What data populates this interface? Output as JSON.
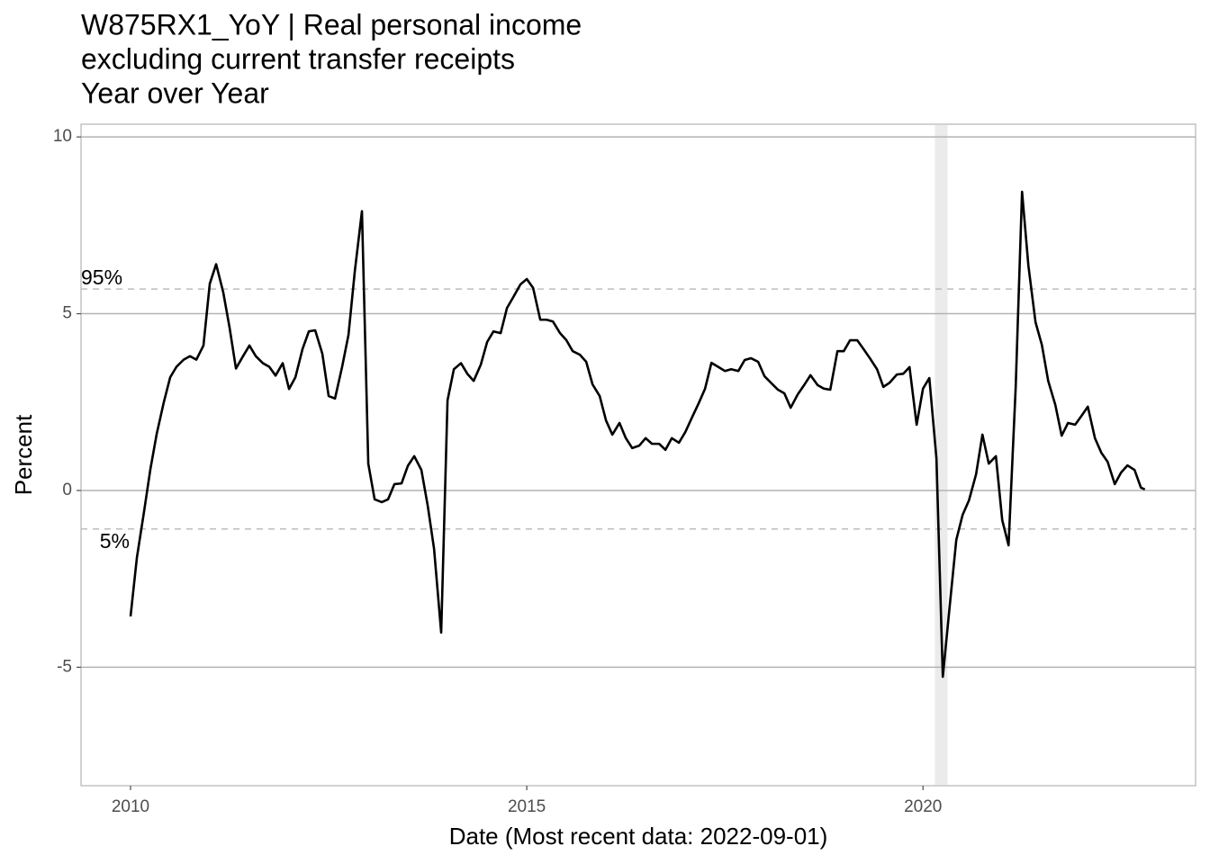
{
  "chart_data": {
    "type": "line",
    "title": [
      "W875RX1_YoY | Real personal income",
      "excluding current transfer receipts",
      "Year over Year"
    ],
    "x_label": "Date (Most recent data: 2022-09-01)",
    "y_label": "Percent",
    "color": "#000000",
    "grid": true,
    "xlim": [
      2009.375,
      2023.44
    ],
    "xticks": [
      2010,
      2015,
      2020
    ],
    "ylim": [
      -8.35,
      10.36
    ],
    "yticks": [
      -5,
      0,
      5,
      10
    ],
    "reference_lines": [
      {
        "label": "95%",
        "value": 5.7
      },
      {
        "label": "5%",
        "value": -1.09
      }
    ],
    "shaded_ranges": [
      [
        2020.15,
        2020.31
      ]
    ],
    "x": [
      2010.0,
      2010.08,
      2010.17,
      2010.25,
      2010.33,
      2010.42,
      2010.5,
      2010.58,
      2010.67,
      2010.75,
      2010.83,
      2010.92,
      2011.0,
      2011.08,
      2011.17,
      2011.25,
      2011.33,
      2011.42,
      2011.5,
      2011.58,
      2011.67,
      2011.75,
      2011.83,
      2011.92,
      2012.0,
      2012.08,
      2012.17,
      2012.25,
      2012.33,
      2012.42,
      2012.5,
      2012.58,
      2012.67,
      2012.75,
      2012.83,
      2012.92,
      2013.0,
      2013.08,
      2013.17,
      2013.25,
      2013.33,
      2013.42,
      2013.5,
      2013.58,
      2013.67,
      2013.75,
      2013.83,
      2013.92,
      2014.0,
      2014.08,
      2014.17,
      2014.25,
      2014.33,
      2014.42,
      2014.5,
      2014.58,
      2014.67,
      2014.75,
      2014.83,
      2014.92,
      2015.0,
      2015.08,
      2015.17,
      2015.25,
      2015.33,
      2015.42,
      2015.5,
      2015.58,
      2015.67,
      2015.75,
      2015.83,
      2015.92,
      2016.0,
      2016.08,
      2016.17,
      2016.25,
      2016.33,
      2016.42,
      2016.5,
      2016.58,
      2016.67,
      2016.75,
      2016.83,
      2016.92,
      2017.0,
      2017.08,
      2017.17,
      2017.25,
      2017.33,
      2017.42,
      2017.5,
      2017.58,
      2017.67,
      2017.75,
      2017.83,
      2017.92,
      2018.0,
      2018.08,
      2018.17,
      2018.25,
      2018.33,
      2018.42,
      2018.5,
      2018.58,
      2018.67,
      2018.75,
      2018.83,
      2018.92,
      2019.0,
      2019.08,
      2019.17,
      2019.25,
      2019.33,
      2019.42,
      2019.5,
      2019.58,
      2019.67,
      2019.75,
      2019.83,
      2019.92,
      2020.0,
      2020.08,
      2020.17,
      2020.25,
      2020.33,
      2020.42,
      2020.5,
      2020.58,
      2020.67,
      2020.75,
      2020.83,
      2020.92,
      2021.0,
      2021.08,
      2021.17,
      2021.25,
      2021.33,
      2021.42,
      2021.5,
      2021.58,
      2021.67,
      2021.75,
      2021.83,
      2021.92,
      2022.0,
      2022.08,
      2022.17,
      2022.25,
      2022.33,
      2022.42,
      2022.5,
      2022.58,
      2022.67,
      2022.75,
      2022.8
    ],
    "values": [
      -3.56,
      -1.9,
      -0.6,
      0.6,
      1.6,
      2.5,
      3.2,
      3.5,
      3.7,
      3.8,
      3.7,
      4.1,
      5.85,
      6.4,
      5.6,
      4.6,
      3.45,
      3.8,
      4.1,
      3.8,
      3.6,
      3.5,
      3.25,
      3.6,
      2.87,
      3.2,
      4.0,
      4.5,
      4.53,
      3.87,
      2.67,
      2.6,
      3.5,
      4.4,
      6.2,
      7.9,
      0.76,
      -0.25,
      -0.33,
      -0.25,
      0.18,
      0.2,
      0.7,
      0.97,
      0.58,
      -0.43,
      -1.65,
      -4.02,
      2.55,
      3.43,
      3.6,
      3.3,
      3.1,
      3.56,
      4.2,
      4.5,
      4.45,
      5.16,
      5.47,
      5.83,
      5.98,
      5.73,
      4.83,
      4.83,
      4.78,
      4.45,
      4.25,
      3.94,
      3.84,
      3.64,
      3.0,
      2.67,
      1.98,
      1.58,
      1.91,
      1.48,
      1.2,
      1.27,
      1.48,
      1.32,
      1.32,
      1.15,
      1.48,
      1.35,
      1.65,
      2.04,
      2.47,
      2.88,
      3.61,
      3.49,
      3.38,
      3.43,
      3.38,
      3.69,
      3.74,
      3.64,
      3.23,
      3.05,
      2.85,
      2.75,
      2.34,
      2.72,
      2.98,
      3.26,
      2.98,
      2.88,
      2.85,
      3.94,
      3.94,
      4.25,
      4.25,
      4.0,
      3.74,
      3.43,
      2.93,
      3.05,
      3.28,
      3.3,
      3.49,
      1.86,
      2.88,
      3.18,
      0.9,
      -5.27,
      -3.43,
      -1.4,
      -0.69,
      -0.28,
      0.46,
      1.58,
      0.76,
      0.97,
      -0.84,
      -1.55,
      2.93,
      8.45,
      6.36,
      4.76,
      4.12,
      3.1,
      2.42,
      1.55,
      1.91,
      1.86,
      2.11,
      2.37,
      1.48,
      1.07,
      0.81,
      0.18,
      0.51,
      0.71,
      0.58,
      0.08,
      0.03
    ]
  }
}
